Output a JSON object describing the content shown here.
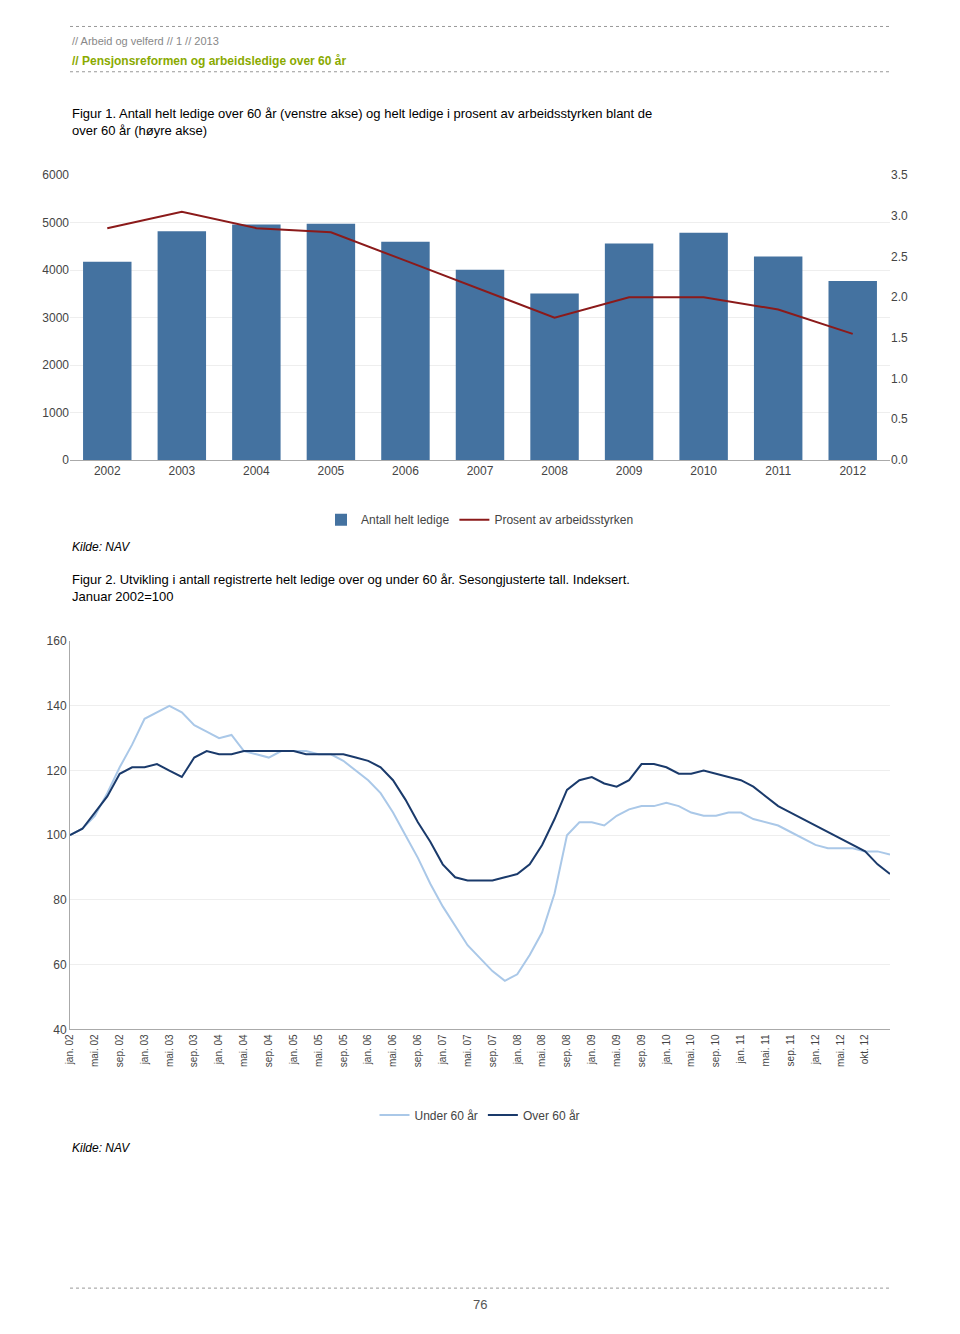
{
  "chart_data": [
    {
      "type": "bar",
      "title": "Figur 1. Antall helt ledige over 60 år (venstre akse) og helt ledige i prosent av arbeidsstyrken blant de over 60 år (høyre akse)",
      "annotations": [
        "// Arbeid og velferd // 1 // 2013",
        "// Pensjonsreformen og arbeidsledige over 60 år",
        "Kilde: NAV"
      ],
      "categories": [
        "2002",
        "2003",
        "2004",
        "2005",
        "2006",
        "2007",
        "2008",
        "2009",
        "2010",
        "2011",
        "2012"
      ],
      "series": [
        {
          "name": "Antall helt ledige",
          "type": "bar",
          "color": "#4472a0",
          "values": [
            4180,
            4820,
            4960,
            4980,
            4600,
            4010,
            3510,
            4560,
            4790,
            4290,
            3770
          ]
        },
        {
          "name": "Prosent av arbeidsstyrken",
          "type": "line",
          "color": "#8b1a1a",
          "axis": "y2",
          "values": [
            2.85,
            3.05,
            2.85,
            2.8,
            2.45,
            2.1,
            1.75,
            2.0,
            2.0,
            1.85,
            1.55
          ]
        }
      ],
      "ylim": [
        0,
        6000
      ],
      "yticks": [
        0,
        1000,
        2000,
        3000,
        4000,
        5000,
        6000
      ],
      "y2lim": [
        0.0,
        3.5
      ],
      "y2ticks": [
        {
          "value": 0,
          "label": "0.0"
        },
        0.5,
        {
          "value": 1,
          "label": "1.0"
        },
        1.5,
        {
          "value": 2,
          "label": "2.0"
        },
        2.5,
        {
          "value": 3,
          "label": "3.0"
        },
        3.5
      ],
      "grid": true,
      "legend": "bottom"
    },
    {
      "type": "line",
      "title": "Figur 2. Utvikling i antall registrerte helt ledige over og under 60 år. Sesongjusterte tall. Indeksert. Januar 2002=100",
      "annotations": [
        "Kilde: NAV",
        "76"
      ],
      "categories": [
        "jan. 02",
        null,
        "mai. 02",
        null,
        "sep. 02",
        null,
        "jan. 03",
        null,
        "mai. 03",
        null,
        "sep. 03",
        null,
        "jan. 04",
        null,
        "mai. 04",
        null,
        "sep. 04",
        null,
        "jan. 05",
        null,
        "mai. 05",
        null,
        "sep. 05",
        null,
        "jan. 06",
        null,
        "mai. 06",
        null,
        "sep. 06",
        null,
        "jan. 07",
        null,
        "mai. 07",
        null,
        "sep. 07",
        null,
        "jan. 08",
        null,
        "mai. 08",
        null,
        "sep. 08",
        null,
        "jan. 09",
        null,
        "mai. 09",
        null,
        "sep. 09",
        null,
        "jan. 10",
        null,
        "mai. 10",
        null,
        "sep. 10",
        null,
        "jan. 11",
        null,
        "mai. 11",
        null,
        "sep. 11",
        null,
        "jan. 12",
        null,
        "mai. 12",
        null,
        "okt. 12",
        null,
        null
      ],
      "series": [
        {
          "name": "Under 60 år",
          "color": "#aac8e8",
          "values": [
            100,
            102,
            106,
            113,
            121,
            128,
            136,
            138,
            140,
            138,
            134,
            132,
            130,
            131,
            126,
            125,
            124,
            126,
            126,
            126,
            125,
            125,
            123,
            120,
            117,
            113,
            107,
            100,
            93,
            85,
            78,
            72,
            66,
            62,
            58,
            55,
            57,
            63,
            70,
            82,
            100,
            104,
            104,
            103,
            106,
            108,
            109,
            109,
            110,
            109,
            107,
            106,
            106,
            107,
            107,
            105,
            104,
            103,
            101,
            99,
            97,
            96,
            96,
            96,
            95,
            95,
            94
          ]
        },
        {
          "name": "Over 60 år",
          "color": "#1a3a6b",
          "values": [
            100,
            102,
            107,
            112,
            119,
            121,
            121,
            122,
            120,
            118,
            124,
            126,
            125,
            125,
            126,
            126,
            126,
            126,
            126,
            125,
            125,
            125,
            125,
            124,
            123,
            121,
            117,
            111,
            104,
            98,
            91,
            87,
            86,
            86,
            86,
            87,
            88,
            91,
            97,
            105,
            114,
            117,
            118,
            116,
            115,
            117,
            122,
            122,
            121,
            119,
            119,
            120,
            119,
            118,
            117,
            115,
            112,
            109,
            107,
            105,
            103,
            101,
            99,
            97,
            95,
            91,
            88
          ]
        }
      ],
      "ylim": [
        40,
        160
      ],
      "yticks": [
        40,
        60,
        80,
        100,
        120,
        140,
        160
      ],
      "grid": true,
      "legend": "bottom"
    }
  ]
}
